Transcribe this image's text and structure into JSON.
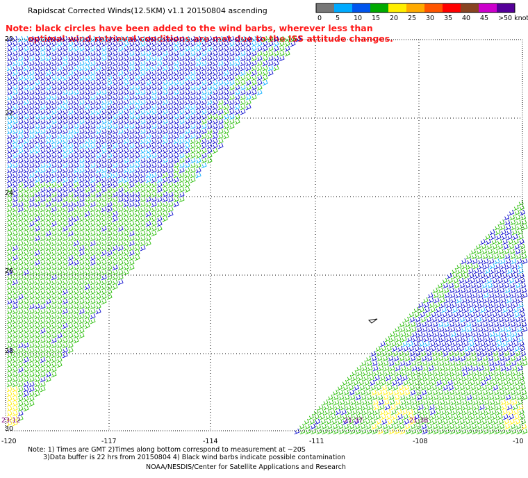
{
  "header": {
    "title": "Rapidscat Corrected Winds(12.5KM) v1.1 20150804 ascending",
    "note_line1": "Note: black circles have been added to the wind barbs, wherever less than",
    "note_line2": "optimal wind retrieval conditions are met due to the ISS attitude changes."
  },
  "legend": {
    "labels": [
      "0",
      "5",
      "10",
      "15",
      "20",
      "25",
      "30",
      "35",
      "40",
      "45",
      ">50 knots"
    ],
    "colors": [
      "#777777",
      "#00aaff",
      "#0055ee",
      "#00aa00",
      "#ffee00",
      "#ffaa00",
      "#ff5500",
      "#ff0000",
      "#884422",
      "#cc00cc",
      "#550099"
    ]
  },
  "map": {
    "lat_labels": [
      "20",
      "22",
      "24",
      "26",
      "28",
      "30"
    ],
    "lon_labels": [
      "-120",
      "-117",
      "-114",
      "-111",
      "-108",
      "-10"
    ],
    "time_labels": [
      "23:12",
      "21:37",
      "21:38"
    ],
    "time_color": "#800080",
    "barb_colors": {
      "low": "#00aaff",
      "mid": "#0000cc",
      "high": "#22bb00",
      "yellow": "#ffee00"
    }
  },
  "footer": {
    "line1": "Note: 1) Times are GMT 2)Times along bottom correspond to measurement at ~20S",
    "line2": "3)Data buffer is 22 hrs from 20150804 4) Black wind barbs indicate possible contamination",
    "line3": "NOAA/NESDIS/Center for Satellite Applications and Research"
  }
}
